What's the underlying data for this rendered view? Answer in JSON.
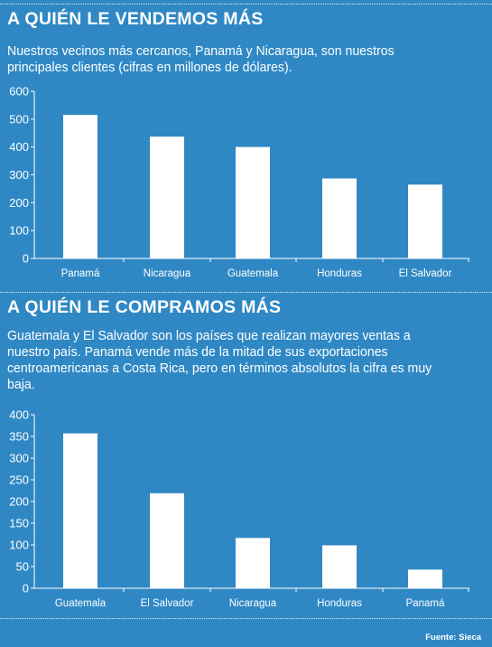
{
  "sections": [
    {
      "heading": "A QUIÉN LE VENDEMOS MÁS",
      "subtitle": "Nuestros vecinos más cercanos, Panamá y Nicaragua, son nuestros principales clientes (cifras en millones de dólares)."
    },
    {
      "heading": "A QUIÉN LE COMPRAMOS MÁS",
      "subtitle": "Guatemala y El Salvador son los países que realizan mayores ventas a nuestro país. Panamá vende más de la mitad de sus exportaciones centroamericanas a Costa Rica, pero en términos absolutos la cifra es muy baja."
    }
  ],
  "source": "Fuente: Sieca",
  "colors": {
    "background": "#2f88c4",
    "bars": "#ffffff"
  },
  "chart_data": [
    {
      "type": "bar",
      "title": "A QUIÉN LE VENDEMOS MÁS",
      "categories": [
        "Panamá",
        "Nicaragua",
        "Guatemala",
        "Honduras",
        "El Salvador"
      ],
      "values": [
        515,
        437,
        400,
        287,
        265
      ],
      "yticks": [
        0,
        100,
        200,
        300,
        400,
        500,
        600
      ],
      "ylim": [
        0,
        600
      ],
      "xlabel": "",
      "ylabel": "",
      "grid": false,
      "legend": "none"
    },
    {
      "type": "bar",
      "title": "A QUIÉN LE COMPRAMOS MÁS",
      "categories": [
        "Guatemala",
        "El Salvador",
        "Nicaragua",
        "Honduras",
        "Panamá"
      ],
      "values": [
        357,
        219,
        116,
        99,
        43
      ],
      "yticks": [
        0,
        50,
        100,
        150,
        200,
        250,
        300,
        350,
        400
      ],
      "ylim": [
        0,
        400
      ],
      "xlabel": "",
      "ylabel": "",
      "grid": false,
      "legend": "none"
    }
  ]
}
